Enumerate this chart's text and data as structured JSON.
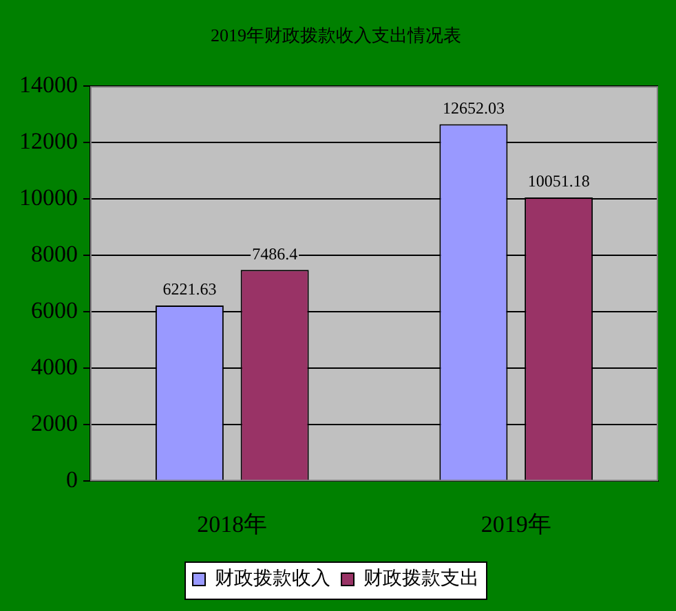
{
  "chart_data": {
    "type": "bar",
    "title": "2019年财政拨款收入支出情况表",
    "categories": [
      "2018年",
      "2019年"
    ],
    "series": [
      {
        "name": "财政拨款收入",
        "color": "#9999ff",
        "values": [
          6221.63,
          12652.03
        ]
      },
      {
        "name": "财政拨款支出",
        "color": "#993366",
        "values": [
          7486.4,
          10051.18
        ]
      }
    ],
    "ylim": [
      0,
      14000
    ],
    "yticks": [
      0,
      2000,
      4000,
      6000,
      8000,
      10000,
      12000,
      14000
    ],
    "grid": "y",
    "legend": "bottom",
    "data_labels": true
  }
}
